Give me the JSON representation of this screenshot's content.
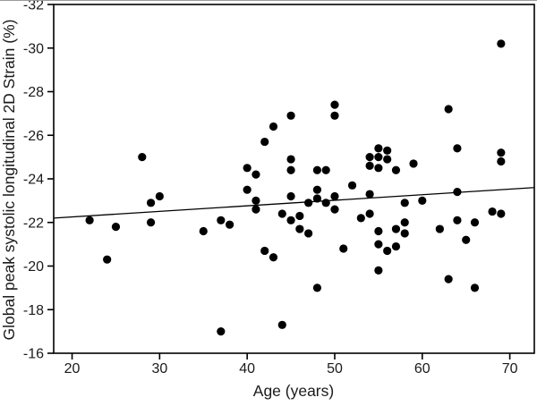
{
  "chart_data": {
    "type": "scatter",
    "title": "",
    "xlabel": "Age (years)",
    "ylabel": "Global peak systolic longitudinal 2D Strain (%)",
    "xlim": [
      17.9,
      72.8
    ],
    "ylim": [
      -32,
      -16
    ],
    "y_axis_direction": "inverted (top = -32, bottom = -16)",
    "x_ticks": [
      20,
      30,
      40,
      50,
      60,
      70
    ],
    "y_ticks": [
      -32,
      -30,
      -28,
      -26,
      -24,
      -22,
      -20,
      -18,
      -16
    ],
    "grid": false,
    "legend": "none",
    "marker_shape": "filled circle",
    "marker_color": "#000000",
    "axis_color": "#000000",
    "background_color": "#ffffff",
    "points": [
      [
        22,
        -22.1
      ],
      [
        24,
        -20.3
      ],
      [
        25,
        -21.8
      ],
      [
        28,
        -25.0
      ],
      [
        29,
        -22.9
      ],
      [
        29,
        -22.0
      ],
      [
        30,
        -23.2
      ],
      [
        35,
        -21.6
      ],
      [
        37,
        -22.1
      ],
      [
        37,
        -17.0
      ],
      [
        38,
        -21.9
      ],
      [
        40,
        -24.5
      ],
      [
        40,
        -23.5
      ],
      [
        41,
        -24.2
      ],
      [
        41,
        -23.0
      ],
      [
        41,
        -22.6
      ],
      [
        42,
        -25.7
      ],
      [
        42,
        -20.7
      ],
      [
        43,
        -26.4
      ],
      [
        43,
        -20.4
      ],
      [
        44,
        -22.4
      ],
      [
        44,
        -17.3
      ],
      [
        45,
        -26.9
      ],
      [
        45,
        -24.9
      ],
      [
        45,
        -24.4
      ],
      [
        45,
        -23.2
      ],
      [
        45,
        -22.1
      ],
      [
        46,
        -22.3
      ],
      [
        46,
        -21.7
      ],
      [
        47,
        -22.9
      ],
      [
        47,
        -21.5
      ],
      [
        48,
        -24.4
      ],
      [
        48,
        -23.5
      ],
      [
        48,
        -23.1
      ],
      [
        48,
        -19.0
      ],
      [
        49,
        -24.4
      ],
      [
        49,
        -22.9
      ],
      [
        50,
        -27.4
      ],
      [
        50,
        -26.9
      ],
      [
        50,
        -23.2
      ],
      [
        50,
        -22.6
      ],
      [
        51,
        -20.8
      ],
      [
        52,
        -23.7
      ],
      [
        53,
        -22.2
      ],
      [
        54,
        -25.0
      ],
      [
        54,
        -24.6
      ],
      [
        54,
        -23.3
      ],
      [
        54,
        -22.4
      ],
      [
        55,
        -25.4
      ],
      [
        55,
        -25.0
      ],
      [
        55,
        -24.5
      ],
      [
        55,
        -21.6
      ],
      [
        55,
        -21.0
      ],
      [
        55,
        -19.8
      ],
      [
        56,
        -25.3
      ],
      [
        56,
        -24.9
      ],
      [
        56,
        -20.7
      ],
      [
        57,
        -24.4
      ],
      [
        57,
        -21.7
      ],
      [
        57,
        -20.9
      ],
      [
        58,
        -22.9
      ],
      [
        58,
        -22.0
      ],
      [
        58,
        -21.5
      ],
      [
        59,
        -24.7
      ],
      [
        60,
        -23.0
      ],
      [
        62,
        -21.7
      ],
      [
        63,
        -27.2
      ],
      [
        63,
        -19.4
      ],
      [
        64,
        -25.4
      ],
      [
        64,
        -23.4
      ],
      [
        64,
        -22.1
      ],
      [
        65,
        -21.2
      ],
      [
        66,
        -22.0
      ],
      [
        66,
        -19.0
      ],
      [
        68,
        -22.5
      ],
      [
        69,
        -30.2
      ],
      [
        69,
        -25.2
      ],
      [
        69,
        -24.8
      ],
      [
        69,
        -22.4
      ]
    ],
    "trendline": {
      "description": "linear regression line",
      "x1": 17.9,
      "y1": -22.2,
      "x2": 72.8,
      "y2": -23.6,
      "color": "#000000"
    }
  }
}
